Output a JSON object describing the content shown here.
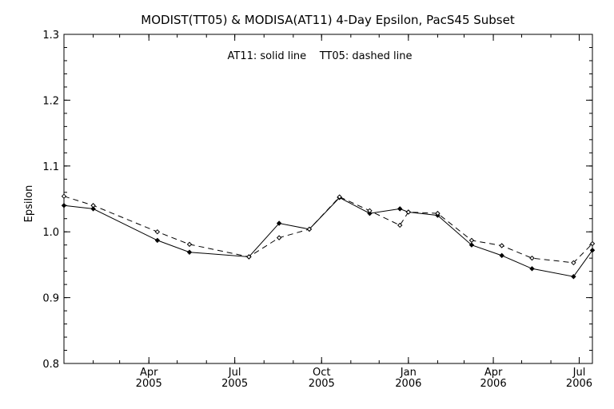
{
  "chart_data": {
    "type": "line",
    "title": "MODIST(TT05) & MODISA(AT11) 4-Day Epsilon, PacS45 Subset",
    "annotation": "AT11: solid line    TT05: dashed line",
    "ylabel": "Epsilon",
    "xlabel": "",
    "xlim": [
      "2005-01-01",
      "2006-07-15"
    ],
    "ylim": [
      0.8,
      1.3
    ],
    "y_ticks": [
      "0.8",
      "0.9",
      "1.0",
      "1.1",
      "1.2",
      "1.3"
    ],
    "x_ticks": [
      {
        "date": "2005-04-01",
        "label1": "Apr",
        "label2": "2005"
      },
      {
        "date": "2005-07-01",
        "label1": "Jul",
        "label2": "2005"
      },
      {
        "date": "2005-10-01",
        "label1": "Oct",
        "label2": "2005"
      },
      {
        "date": "2006-01-01",
        "label1": "Jan",
        "label2": "2006"
      },
      {
        "date": "2006-04-01",
        "label1": "Apr",
        "label2": "2006"
      },
      {
        "date": "2006-07-01",
        "label1": "Jul",
        "label2": "2006"
      }
    ],
    "grid": false,
    "series": [
      {
        "name": "AT11",
        "style": "solid",
        "color": "#000000",
        "points": [
          {
            "x": "2005-01-01",
            "y": 1.04
          },
          {
            "x": "2005-02-01",
            "y": 1.035
          },
          {
            "x": "2005-04-10",
            "y": 0.987
          },
          {
            "x": "2005-05-14",
            "y": 0.969
          },
          {
            "x": "2005-07-16",
            "y": 0.962
          },
          {
            "x": "2005-08-17",
            "y": 1.013
          },
          {
            "x": "2005-09-18",
            "y": 1.004
          },
          {
            "x": "2005-10-20",
            "y": 1.052
          },
          {
            "x": "2005-11-21",
            "y": 1.028
          },
          {
            "x": "2005-12-23",
            "y": 1.035
          },
          {
            "x": "2006-01-01",
            "y": 1.03
          },
          {
            "x": "2006-02-01",
            "y": 1.025
          },
          {
            "x": "2006-03-09",
            "y": 0.98
          },
          {
            "x": "2006-04-10",
            "y": 0.964
          },
          {
            "x": "2006-05-12",
            "y": 0.944
          },
          {
            "x": "2006-06-25",
            "y": 0.932
          },
          {
            "x": "2006-07-15",
            "y": 0.972
          }
        ]
      },
      {
        "name": "TT05",
        "style": "dashed",
        "color": "#000000",
        "points": [
          {
            "x": "2005-01-01",
            "y": 1.054
          },
          {
            "x": "2005-02-01",
            "y": 1.04
          },
          {
            "x": "2005-04-10",
            "y": 1.0
          },
          {
            "x": "2005-05-14",
            "y": 0.981
          },
          {
            "x": "2005-07-16",
            "y": 0.962
          },
          {
            "x": "2005-08-17",
            "y": 0.991
          },
          {
            "x": "2005-09-18",
            "y": 1.004
          },
          {
            "x": "2005-10-20",
            "y": 1.053
          },
          {
            "x": "2005-11-21",
            "y": 1.032
          },
          {
            "x": "2005-12-23",
            "y": 1.01
          },
          {
            "x": "2006-01-01",
            "y": 1.03
          },
          {
            "x": "2006-02-01",
            "y": 1.028
          },
          {
            "x": "2006-03-09",
            "y": 0.987
          },
          {
            "x": "2006-04-10",
            "y": 0.979
          },
          {
            "x": "2006-05-12",
            "y": 0.96
          },
          {
            "x": "2006-06-25",
            "y": 0.953
          },
          {
            "x": "2006-07-15",
            "y": 0.982
          }
        ]
      }
    ]
  }
}
